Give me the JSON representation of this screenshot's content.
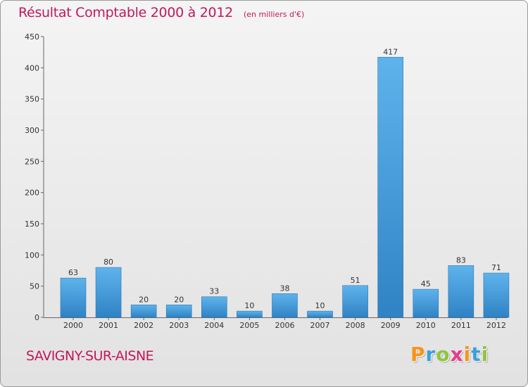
{
  "title": "Résultat Comptable 2000 à 2012",
  "subtitle": "(en milliers d'€)",
  "location": "SAVIGNY-SUR-AISNE",
  "brand": {
    "letters": [
      "P",
      "r",
      "o",
      "x",
      "i",
      "t",
      "i"
    ],
    "colors": [
      "#f7941d",
      "#3aa0dc",
      "#8dc63f",
      "#e63c8c",
      "#f7941d",
      "#3aa0dc",
      "#8dc63f"
    ]
  },
  "colors": {
    "bar_light": "#5fb3ec",
    "bar_dark": "#2f83c4",
    "title": "#c2185b"
  },
  "chart_data": {
    "type": "bar",
    "title": "Résultat Comptable 2000 à 2012",
    "subtitle": "(en milliers d'€)",
    "categories": [
      "2000",
      "2001",
      "2002",
      "2003",
      "2004",
      "2005",
      "2006",
      "2007",
      "2008",
      "2009",
      "2010",
      "2011",
      "2012"
    ],
    "values": [
      63,
      80,
      20,
      20,
      33,
      10,
      38,
      10,
      51,
      417,
      45,
      83,
      71
    ],
    "yticks": [
      0,
      50,
      100,
      150,
      200,
      250,
      300,
      350,
      400,
      450
    ],
    "ylim": [
      0,
      450
    ],
    "xlabel": "",
    "ylabel": "",
    "grid": false
  }
}
